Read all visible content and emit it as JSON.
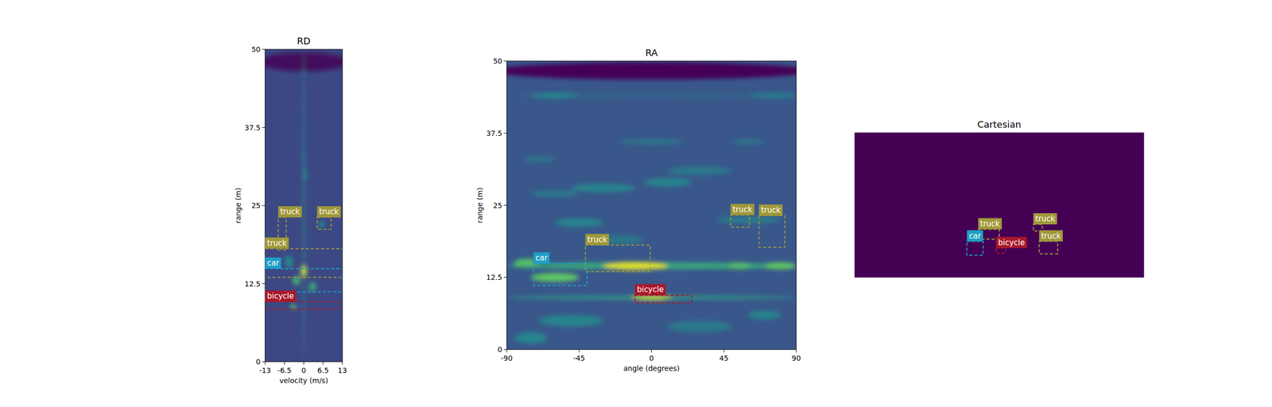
{
  "chart_data": [
    {
      "type": "heatmap",
      "title": "RD",
      "x_label": "velocity (m/s)",
      "y_label": "range (m)",
      "xlim": [
        -13,
        13
      ],
      "xticks": [
        -13,
        -6.5,
        0,
        6.5,
        13
      ],
      "ylim": [
        0,
        50
      ],
      "yticks": [
        0,
        12.5,
        25,
        37.5,
        50
      ],
      "background": 0.22,
      "spots": [
        {
          "x": 0,
          "y": 48,
          "x_width": 30,
          "y_width": 3,
          "intensity": 0.03
        },
        {
          "x": 0,
          "y": 25,
          "x_width": 0.4,
          "y_width": 50,
          "intensity": 0.55
        },
        {
          "x": 0,
          "y": 14.5,
          "x_width": 2,
          "y_width": 2,
          "intensity": 0.9
        },
        {
          "x": -2.5,
          "y": 13,
          "x_width": 2.5,
          "y_width": 1.5,
          "intensity": 0.65
        },
        {
          "x": 3,
          "y": 12,
          "x_width": 2.5,
          "y_width": 1.5,
          "intensity": 0.6
        },
        {
          "x": -3.5,
          "y": 8.8,
          "x_width": 2,
          "y_width": 0.8,
          "intensity": 0.7
        },
        {
          "x": 6,
          "y": 22,
          "x_width": 2,
          "y_width": 1,
          "intensity": 0.5
        },
        {
          "x": 0.5,
          "y": 30,
          "x_width": 1,
          "y_width": 2,
          "intensity": 0.5
        },
        {
          "x": 0,
          "y": 33,
          "x_width": 1,
          "y_width": 2,
          "intensity": 0.45
        },
        {
          "x": -5,
          "y": 16,
          "x_width": 3,
          "y_width": 2,
          "intensity": 0.45
        }
      ],
      "boxes": [
        {
          "label": "truck",
          "x": [
            -8.6,
            -5.9
          ],
          "y": [
            17.9,
            23.1
          ],
          "color": "#a0983a"
        },
        {
          "label": "truck",
          "x": [
            4.5,
            9.2
          ],
          "y": [
            21.2,
            23.1
          ],
          "color": "#a0983a"
        },
        {
          "label": "truck",
          "x": [
            -13,
            13
          ],
          "y": [
            13.5,
            18.1
          ],
          "color": "#a0983a"
        },
        {
          "label": "car",
          "x": [
            -13,
            13
          ],
          "y": [
            11.2,
            14.9
          ],
          "color": "#1f9ec4"
        },
        {
          "label": "bicycle",
          "x": [
            -13,
            13
          ],
          "y": [
            8.4,
            9.6
          ],
          "color": "#a8182a"
        }
      ]
    },
    {
      "type": "heatmap",
      "title": "RA",
      "x_label": "angle (degrees)",
      "y_label": "range (m)",
      "xlim": [
        -90,
        90
      ],
      "xticks": [
        -90,
        -45,
        0,
        45,
        90
      ],
      "ylim": [
        0,
        50
      ],
      "yticks": [
        0,
        12.5,
        25,
        37.5,
        50
      ],
      "background": 0.27,
      "spots": [
        {
          "x": 0,
          "y": 48.3,
          "x_width": 200,
          "y_width": 3,
          "intensity": 0.0
        },
        {
          "x": 0,
          "y": 44,
          "x_width": 180,
          "y_width": 0.5,
          "intensity": 0.35
        },
        {
          "x": -60,
          "y": 44,
          "x_width": 30,
          "y_width": 0.8,
          "intensity": 0.5
        },
        {
          "x": 75,
          "y": 44,
          "x_width": 30,
          "y_width": 0.8,
          "intensity": 0.45
        },
        {
          "x": 0,
          "y": 14.5,
          "x_width": 180,
          "y_width": 1.2,
          "intensity": 0.6
        },
        {
          "x": -10,
          "y": 14.5,
          "x_width": 40,
          "y_width": 1.4,
          "intensity": 0.95
        },
        {
          "x": -60,
          "y": 12.5,
          "x_width": 30,
          "y_width": 1.5,
          "intensity": 0.75
        },
        {
          "x": -78,
          "y": 15,
          "x_width": 15,
          "y_width": 1.5,
          "intensity": 0.7
        },
        {
          "x": 80,
          "y": 14.5,
          "x_width": 20,
          "y_width": 1.2,
          "intensity": 0.75
        },
        {
          "x": 55,
          "y": 14.5,
          "x_width": 15,
          "y_width": 1.2,
          "intensity": 0.7
        },
        {
          "x": 0,
          "y": 9,
          "x_width": 180,
          "y_width": 0.6,
          "intensity": 0.55
        },
        {
          "x": 0,
          "y": 9,
          "x_width": 25,
          "y_width": 0.9,
          "intensity": 0.9
        },
        {
          "x": -30,
          "y": 28,
          "x_width": 40,
          "y_width": 1.5,
          "intensity": 0.45
        },
        {
          "x": 10,
          "y": 29,
          "x_width": 30,
          "y_width": 1.5,
          "intensity": 0.45
        },
        {
          "x": -60,
          "y": 27,
          "x_width": 30,
          "y_width": 1.2,
          "intensity": 0.4
        },
        {
          "x": 30,
          "y": 31,
          "x_width": 40,
          "y_width": 1.5,
          "intensity": 0.4
        },
        {
          "x": -45,
          "y": 22,
          "x_width": 30,
          "y_width": 1.5,
          "intensity": 0.45
        },
        {
          "x": 60,
          "y": 22.5,
          "x_width": 40,
          "y_width": 1.2,
          "intensity": 0.42
        },
        {
          "x": -20,
          "y": 19,
          "x_width": 30,
          "y_width": 1.5,
          "intensity": 0.4
        },
        {
          "x": -50,
          "y": 5,
          "x_width": 40,
          "y_width": 2,
          "intensity": 0.45
        },
        {
          "x": 30,
          "y": 4,
          "x_width": 40,
          "y_width": 2,
          "intensity": 0.4
        },
        {
          "x": 70,
          "y": 6,
          "x_width": 20,
          "y_width": 1.5,
          "intensity": 0.45
        },
        {
          "x": 0,
          "y": 36,
          "x_width": 40,
          "y_width": 1,
          "intensity": 0.38
        },
        {
          "x": -70,
          "y": 33,
          "x_width": 20,
          "y_width": 1,
          "intensity": 0.38
        },
        {
          "x": 60,
          "y": 36,
          "x_width": 20,
          "y_width": 1,
          "intensity": 0.38
        },
        {
          "x": -75,
          "y": 2,
          "x_width": 20,
          "y_width": 2,
          "intensity": 0.45
        }
      ],
      "boxes": [
        {
          "label": "truck",
          "x": [
            -41.1,
            -0.8
          ],
          "y": [
            13.5,
            18.1
          ],
          "color": "#a0983a"
        },
        {
          "label": "car",
          "x": [
            -73.4,
            -40.1
          ],
          "y": [
            11.1,
            14.9
          ],
          "color": "#1f9ec4"
        },
        {
          "label": "bicycle",
          "x": [
            -10.3,
            25.0
          ],
          "y": [
            8.1,
            9.4
          ],
          "color": "#a8182a"
        },
        {
          "label": "truck",
          "x": [
            49.2,
            60.8
          ],
          "y": [
            21.2,
            23.3
          ],
          "color": "#a0983a"
        },
        {
          "label": "truck",
          "x": [
            66.8,
            82.9
          ],
          "y": [
            17.7,
            23.2
          ],
          "color": "#a0983a"
        }
      ]
    },
    {
      "type": "heatmap",
      "title": "Cartesian",
      "tick_labels": false,
      "xlim": [
        -50,
        50
      ],
      "ylim": [
        0,
        50
      ],
      "background": 0.0,
      "spots": [],
      "boxes": [
        {
          "label": "truck",
          "x": [
            -7.3,
            0.0
          ],
          "y": [
            13.2,
            16.6
          ],
          "color": "#a0983a"
        },
        {
          "label": "car",
          "x": [
            -11.2,
            -5.6
          ],
          "y": [
            7.6,
            12.4
          ],
          "color": "#1f9ec4"
        },
        {
          "label": "bicycle",
          "x": [
            -1.1,
            2.2
          ],
          "y": [
            8.4,
            10.1
          ],
          "color": "#a8182a"
        },
        {
          "label": "truck",
          "x": [
            11.8,
            14.9
          ],
          "y": [
            16.0,
            18.3
          ],
          "color": "#a0983a"
        },
        {
          "label": "truck",
          "x": [
            13.8,
            20.2
          ],
          "y": [
            8.1,
            12.4
          ],
          "color": "#a0983a"
        }
      ]
    }
  ]
}
